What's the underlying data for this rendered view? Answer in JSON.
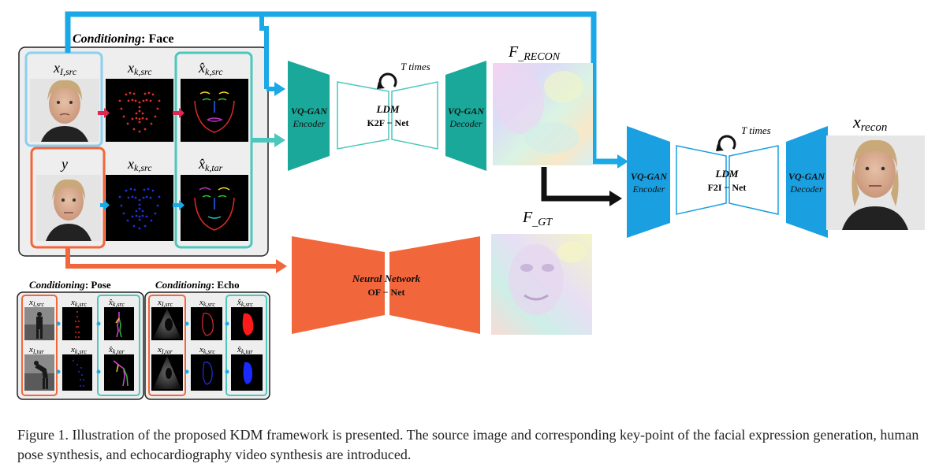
{
  "face_panel": {
    "title_bold": "Conditioning",
    "title_rest": ": Face",
    "labels": {
      "x_src_img": "x",
      "x_src_img_sub": "I,src",
      "x_src_kp": "x",
      "x_src_kp_sub": "k,src",
      "xhat_src_kp": "x̂",
      "xhat_src_kp_sub": "k,src",
      "y": "y",
      "x_src_kp2": "x",
      "x_src_kp2_sub": "k,src",
      "xhat_tar_kp": "x̂",
      "xhat_tar_kp_sub": "k,tar"
    }
  },
  "pose_panel": {
    "title_bold": "Conditioning",
    "title_rest": ": Pose",
    "row1": [
      {
        "m": "x",
        "s": "I,src"
      },
      {
        "m": "x",
        "s": "k,src"
      },
      {
        "m": "x̂",
        "s": "k,src"
      }
    ],
    "row2": [
      {
        "m": "x",
        "s": "I,tar"
      },
      {
        "m": "x",
        "s": "k,src"
      },
      {
        "m": "x̂",
        "s": "k,tar"
      }
    ]
  },
  "echo_panel": {
    "title_bold": "Conditioning",
    "title_rest": ": Echo",
    "row1": [
      {
        "m": "x",
        "s": "I,src"
      },
      {
        "m": "x",
        "s": "k,src"
      },
      {
        "m": "x̂",
        "s": "k,src"
      }
    ],
    "row2": [
      {
        "m": "x",
        "s": "I,tar"
      },
      {
        "m": "x",
        "s": "k,src"
      },
      {
        "m": "x̂",
        "s": "k,tar"
      }
    ]
  },
  "stage1": {
    "encoder_label": [
      "VQ-GAN",
      "Encoder"
    ],
    "ldm_title": "LDM",
    "ldm_sub": "K2F − Net",
    "decoder_label": [
      "VQ-GAN",
      "Decoder"
    ],
    "t_times": "T times",
    "flow_label": "F",
    "flow_sub": "_RECON"
  },
  "stage2": {
    "encoder_label": [
      "VQ-GAN",
      "Encoder"
    ],
    "ldm_title": "LDM",
    "ldm_sub": "F2I − Net",
    "decoder_label": [
      "VQ-GAN",
      "Decoder"
    ],
    "t_times": "T times",
    "output_label": "x",
    "output_sub": "recon"
  },
  "of_net": {
    "title": "Neural Network",
    "sub": "OF − Net",
    "flow_label": "F",
    "flow_sub": "_GT"
  },
  "caption": "Figure 1. Illustration of the proposed KDM framework is presented. The source image and corresponding key-point of the facial expression generation, human pose synthesis, and echocardiography video synthesis are introduced.",
  "colors": {
    "blue": "#1aa9e6",
    "teal": "#1aa89a",
    "orange": "#f2663c",
    "vq_blue": "#1a9fe0",
    "black": "#111111"
  }
}
